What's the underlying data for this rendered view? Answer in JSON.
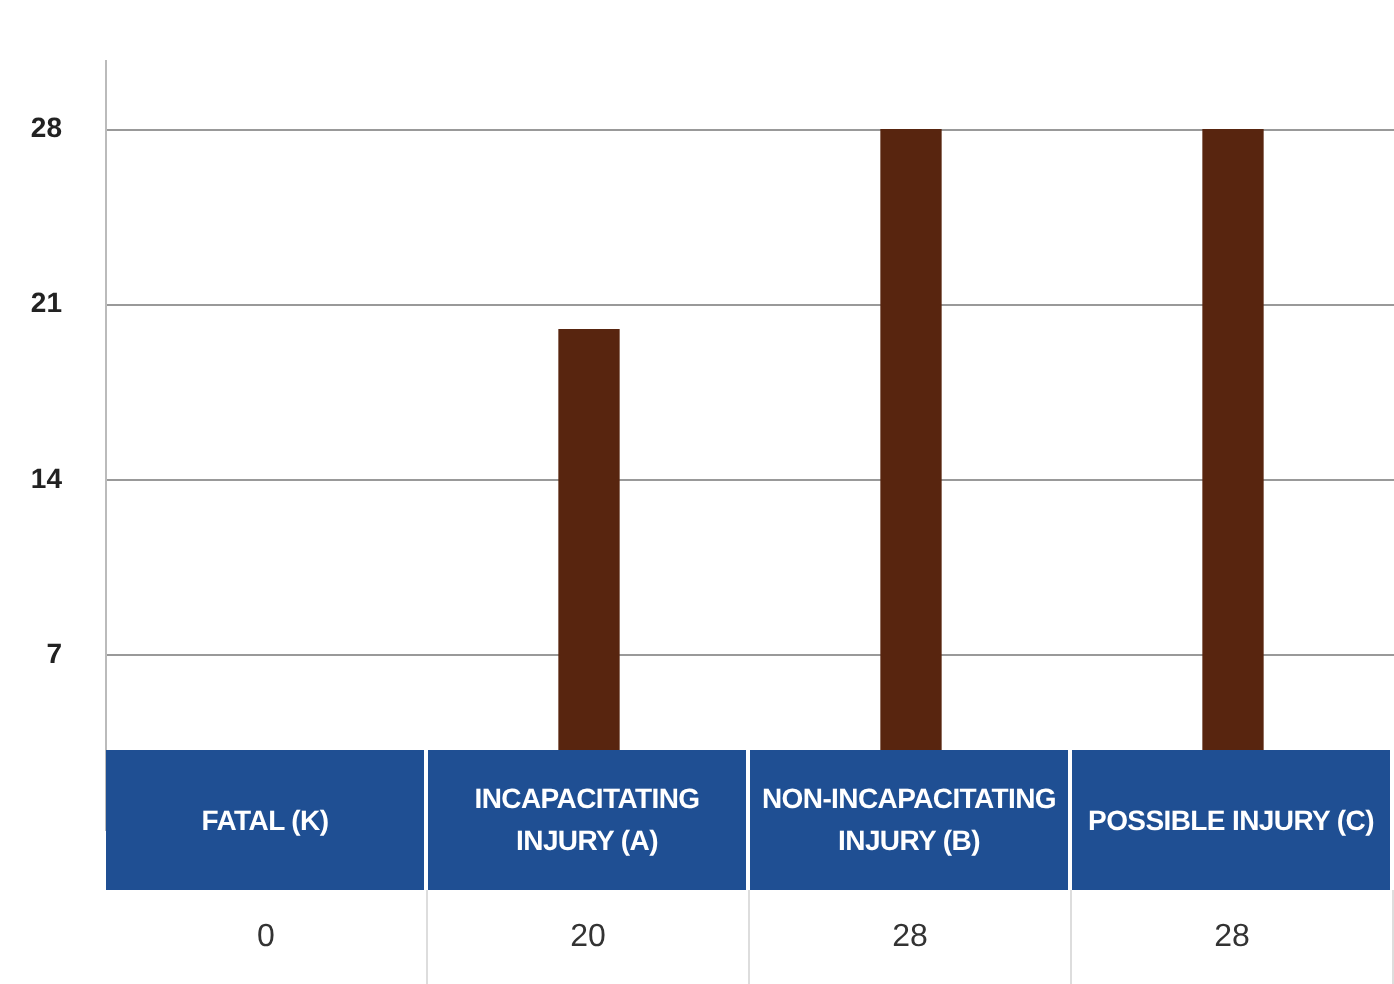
{
  "chart_data": {
    "type": "bar",
    "categories": [
      "FATAL (K)",
      "INCAPACITATING INJURY (A)",
      "NON-INCAPACITATING INJURY (B)",
      "POSSIBLE INJURY (C)"
    ],
    "values": [
      0,
      20,
      28,
      28
    ],
    "color": "#58250f",
    "ylim": [
      0,
      30.75
    ],
    "yticks": [
      7,
      14,
      21,
      28
    ],
    "grid": "y",
    "legend": false,
    "data_labels": true
  }
}
